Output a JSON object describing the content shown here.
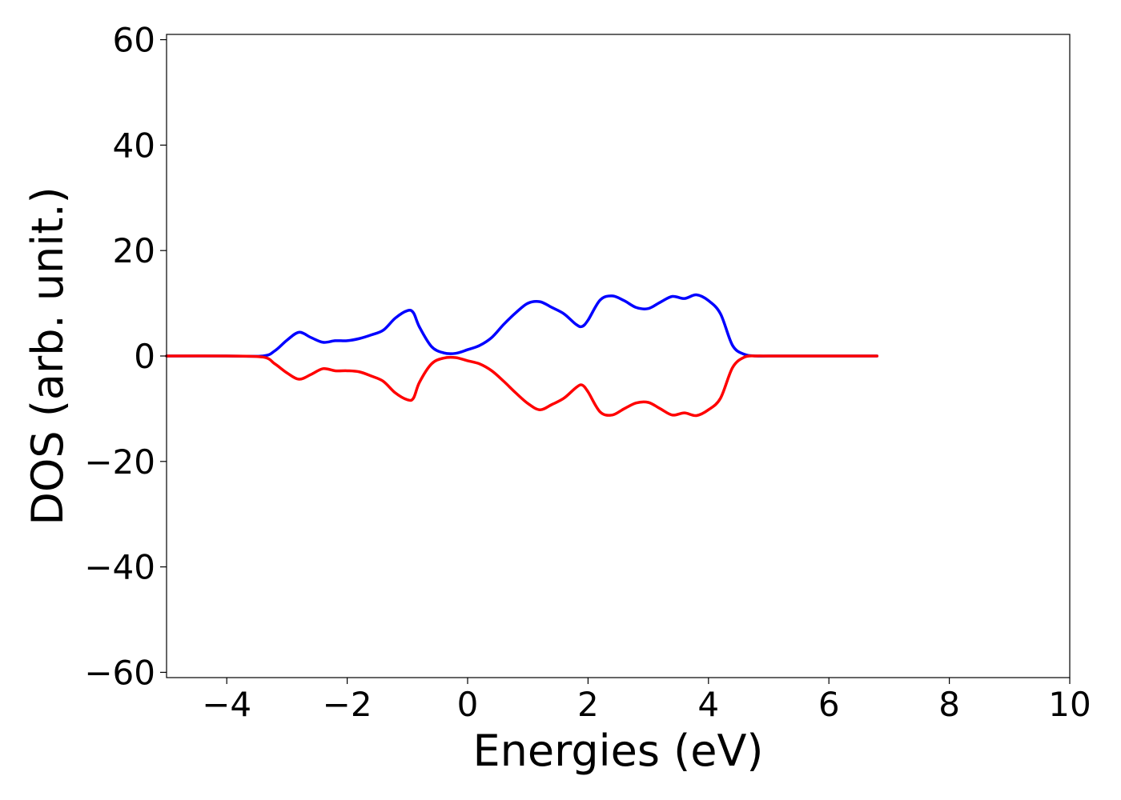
{
  "chart_data": {
    "type": "line",
    "title": "",
    "xlabel": "Energies (eV)",
    "ylabel": "DOS (arb. unit.)",
    "xlim": [
      -5.0,
      10.0
    ],
    "ylim": [
      -61.0,
      61.0
    ],
    "xticks": [
      -4,
      -2,
      0,
      2,
      4,
      6,
      8,
      10
    ],
    "yticks": [
      -60,
      -40,
      -20,
      0,
      20,
      40,
      60
    ],
    "xtick_labels": [
      "−4",
      "−2",
      "0",
      "2",
      "4",
      "6",
      "8",
      "10"
    ],
    "ytick_labels": [
      "−60",
      "−40",
      "−20",
      "0",
      "20",
      "40",
      "60"
    ],
    "grid": false,
    "legend": "none",
    "series": [
      {
        "color": "#0000ff",
        "x": [
          -5.0,
          -4.0,
          -3.4,
          -3.2,
          -3.0,
          -2.8,
          -2.6,
          -2.4,
          -2.2,
          -2.0,
          -1.8,
          -1.6,
          -1.4,
          -1.2,
          -1.0,
          -0.9,
          -0.8,
          -0.6,
          -0.4,
          -0.2,
          0.0,
          0.2,
          0.4,
          0.6,
          0.8,
          1.0,
          1.2,
          1.4,
          1.6,
          1.8,
          1.9,
          2.0,
          2.2,
          2.4,
          2.6,
          2.8,
          3.0,
          3.2,
          3.4,
          3.6,
          3.8,
          4.0,
          4.2,
          4.4,
          4.6,
          4.8,
          5.0,
          6.0,
          6.8
        ],
        "y": [
          0.0,
          0.0,
          0.0,
          1.0,
          3.0,
          4.5,
          3.5,
          2.6,
          2.9,
          2.9,
          3.3,
          4.0,
          4.9,
          7.2,
          8.6,
          8.2,
          5.5,
          1.8,
          0.6,
          0.5,
          1.2,
          2.0,
          3.5,
          6.0,
          8.2,
          10.0,
          10.3,
          9.2,
          8.0,
          6.0,
          5.6,
          6.8,
          10.6,
          11.4,
          10.5,
          9.2,
          9.0,
          10.2,
          11.3,
          10.9,
          11.6,
          10.5,
          8.0,
          2.0,
          0.3,
          0.0,
          0.0,
          0.0,
          0.0
        ]
      },
      {
        "color": "#ff0000",
        "x": [
          -5.0,
          -4.0,
          -3.4,
          -3.2,
          -3.0,
          -2.8,
          -2.6,
          -2.4,
          -2.2,
          -2.0,
          -1.8,
          -1.6,
          -1.4,
          -1.2,
          -1.0,
          -0.9,
          -0.8,
          -0.6,
          -0.4,
          -0.2,
          0.0,
          0.2,
          0.4,
          0.6,
          0.8,
          1.0,
          1.2,
          1.4,
          1.6,
          1.8,
          1.9,
          2.0,
          2.2,
          2.4,
          2.6,
          2.8,
          3.0,
          3.2,
          3.4,
          3.6,
          3.8,
          4.0,
          4.2,
          4.4,
          4.6,
          4.8,
          5.0,
          6.0,
          6.8
        ],
        "y": [
          0.0,
          0.0,
          -0.2,
          -1.5,
          -3.2,
          -4.4,
          -3.5,
          -2.4,
          -2.8,
          -2.8,
          -3.0,
          -3.8,
          -4.8,
          -7.0,
          -8.3,
          -8.0,
          -5.0,
          -1.5,
          -0.4,
          -0.3,
          -0.9,
          -1.5,
          -2.8,
          -4.8,
          -7.0,
          -9.0,
          -10.2,
          -9.2,
          -8.0,
          -6.0,
          -5.5,
          -6.8,
          -10.6,
          -11.2,
          -10.0,
          -8.9,
          -8.8,
          -10.0,
          -11.2,
          -10.8,
          -11.3,
          -10.2,
          -8.0,
          -2.2,
          -0.2,
          0.0,
          0.0,
          0.0,
          0.0
        ]
      }
    ]
  }
}
